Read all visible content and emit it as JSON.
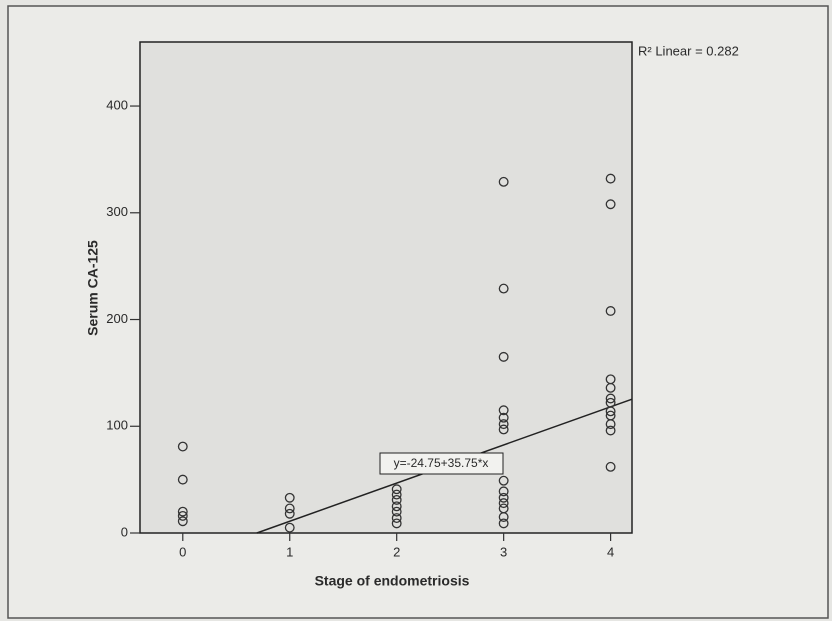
{
  "chart_data": {
    "type": "scatter",
    "xlabel": "Stage of endometriosis",
    "ylabel": "Serum CA-125",
    "annotation": "R² Linear = 0.282",
    "fit_line": {
      "intercept": -24.75,
      "slope": 35.75,
      "label": "y=-24.75+35.75*x"
    },
    "x": [
      0,
      0,
      0,
      0,
      0,
      1,
      1,
      1,
      1,
      2,
      2,
      2,
      2,
      2,
      2,
      2,
      3,
      3,
      3,
      3,
      3,
      3,
      3,
      3,
      3,
      3,
      3,
      3,
      3,
      3,
      4,
      4,
      4,
      4,
      4,
      4,
      4,
      4,
      4,
      4,
      4,
      4
    ],
    "values": [
      81,
      50,
      20,
      16,
      11,
      33,
      23,
      18,
      5,
      41,
      36,
      31,
      25,
      20,
      14,
      9,
      329,
      229,
      165,
      115,
      108,
      102,
      97,
      49,
      39,
      33,
      28,
      23,
      15,
      9,
      332,
      308,
      208,
      144,
      136,
      126,
      122,
      114,
      110,
      102,
      96,
      62
    ],
    "color": "#333333",
    "xlim": [
      -0.4,
      4.2
    ],
    "xticks": [
      0,
      1,
      2,
      3,
      4
    ],
    "ylim": [
      0,
      460
    ],
    "yticks": [
      0,
      100,
      200,
      300,
      400
    ]
  }
}
